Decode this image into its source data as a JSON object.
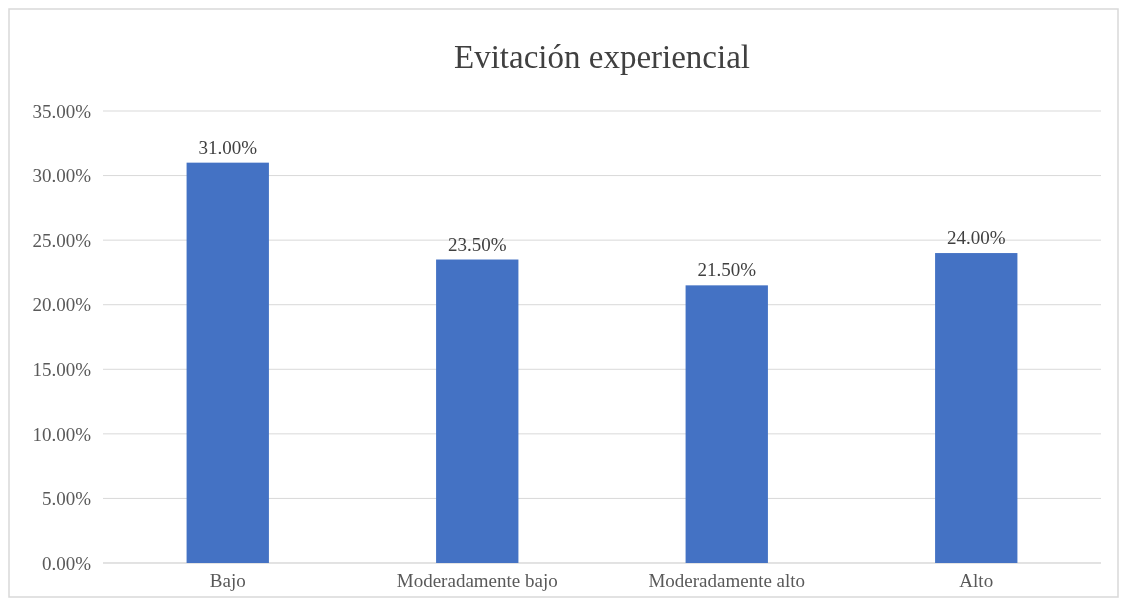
{
  "chart_data": {
    "type": "bar",
    "title": "Evitación experiencial",
    "categories": [
      "Bajo",
      "Moderadamente bajo",
      "Moderadamente alto",
      "Alto"
    ],
    "values": [
      31,
      23.5,
      21.5,
      24
    ],
    "color": "#4472c4",
    "value_labels": [
      "31.00%",
      "23.50%",
      "21.50%",
      "24.00%"
    ],
    "ylim": [
      0,
      35
    ],
    "yticks": [
      {
        "value": 0,
        "label": "0.00%"
      },
      {
        "value": 5,
        "label": "5.00%"
      },
      {
        "value": 10,
        "label": "10.00%"
      },
      {
        "value": 15,
        "label": "15.00%"
      },
      {
        "value": 20,
        "label": "20.00%"
      },
      {
        "value": 25,
        "label": "25.00%"
      },
      {
        "value": 30,
        "label": "30.00%"
      },
      {
        "value": 35,
        "label": "35.00%"
      }
    ],
    "grid": "y"
  }
}
